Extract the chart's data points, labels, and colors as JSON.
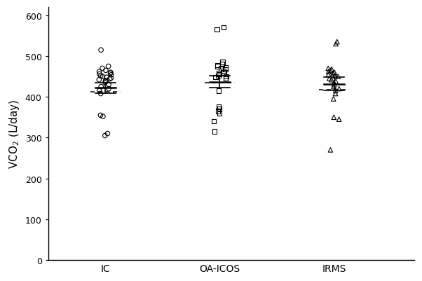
{
  "groups": [
    "IC",
    "OA-ICOS",
    "IRMS"
  ],
  "x_positions": [
    1,
    2,
    3
  ],
  "ylabel": "VCO$_2$ (L/day)",
  "ylim": [
    0,
    620
  ],
  "yticks": [
    0,
    100,
    200,
    300,
    400,
    500,
    600
  ],
  "bg_color": "#ffffff",
  "ic_points": [
    515,
    475,
    470,
    465,
    462,
    460,
    458,
    456,
    454,
    452,
    450,
    448,
    446,
    444,
    442,
    440,
    438,
    435,
    430,
    425,
    420,
    415,
    408,
    355,
    352,
    310,
    305
  ],
  "oaicos_points": [
    570,
    565,
    485,
    480,
    478,
    475,
    472,
    470,
    467,
    464,
    460,
    458,
    455,
    452,
    450,
    448,
    445,
    415,
    375,
    370,
    365,
    360,
    340,
    315
  ],
  "irms_points": [
    535,
    530,
    470,
    468,
    465,
    462,
    460,
    458,
    455,
    452,
    450,
    445,
    442,
    438,
    435,
    430,
    425,
    420,
    415,
    408,
    395,
    350,
    345,
    270
  ],
  "ic_mean": 422,
  "ic_sd": 13,
  "ic_dashed": 413,
  "oaicos_mean": 437,
  "oaicos_sd": 15,
  "oaicos_dashed": 434,
  "irms_mean": 432,
  "irms_sd": 17,
  "irms_dashed": 418,
  "ebar_hw": 0.09,
  "dlw_hw": 0.13,
  "jitter_scale": 0.055
}
